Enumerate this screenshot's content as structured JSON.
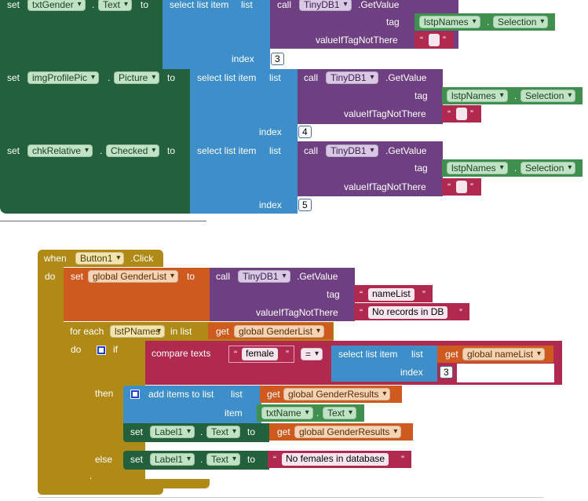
{
  "colors": {
    "setter_green": "#22613b",
    "list_blue": "#3d8ec9",
    "procedure_purple": "#6f4081",
    "text_red": "#b0294f",
    "component_green": "#3f8f4f",
    "variable_orange": "#cf5a20",
    "control_olive": "#b08a17"
  },
  "top_block": {
    "rows": [
      {
        "set_label": "set",
        "component": "txtGender",
        "property": "Text",
        "to_label": "to",
        "select_label": "select list item",
        "list_label": "list",
        "index_label": "index",
        "index_value": "3",
        "call_label": "call",
        "db": "TinyDB1",
        "method": ".GetValue",
        "tag_label": "tag",
        "tag_component": "lstpNames",
        "tag_property": "Selection",
        "notfound_label": "valueIfTagNotThere"
      },
      {
        "set_label": "set",
        "component": "imgProfilePic",
        "property": "Picture",
        "to_label": "to",
        "select_label": "select list item",
        "list_label": "list",
        "index_label": "index",
        "index_value": "4",
        "call_label": "call",
        "db": "TinyDB1",
        "method": ".GetValue",
        "tag_label": "tag",
        "tag_component": "lstpNames",
        "tag_property": "Selection",
        "notfound_label": "valueIfTagNotThere"
      },
      {
        "set_label": "set",
        "component": "chkRelative",
        "property": "Checked",
        "to_label": "to",
        "select_label": "select list item",
        "list_label": "list",
        "index_label": "index",
        "index_value": "5",
        "call_label": "call",
        "db": "TinyDB1",
        "method": ".GetValue",
        "tag_label": "tag",
        "tag_component": "lstpNames",
        "tag_property": "Selection",
        "notfound_label": "valueIfTagNotThere"
      }
    ]
  },
  "event_block": {
    "when_label": "when",
    "component": "Button1",
    "event": ".Click",
    "do_label": "do",
    "set_global": {
      "set_label": "set",
      "variable": "global GenderList",
      "to_label": "to",
      "call_label": "call",
      "db": "TinyDB1",
      "method": ".GetValue",
      "tag_label": "tag",
      "tag_value": "nameList",
      "notfound_label": "valueIfTagNotThere",
      "notfound_value": "No records in DB"
    },
    "for_each": {
      "for_label": "for each",
      "item_var": "lstPNames",
      "in_list_label": "in list",
      "get_label": "get",
      "list_var": "global GenderList",
      "do_label": "do"
    },
    "if_block": {
      "if_label": "if",
      "compare_label": "compare texts",
      "compare_value": "female",
      "operator": "=",
      "select_label": "select list item",
      "list_label": "list",
      "get_label": "get",
      "list_var": "global nameList",
      "index_label": "index",
      "index_value": "3"
    },
    "then_block": {
      "then_label": "then",
      "add_label": "add items to list",
      "list_label": "list",
      "get_label": "get",
      "list_var": "global GenderResults",
      "item_label": "item",
      "item_component": "txtName",
      "item_property": "Text",
      "set_label": "set",
      "set_component": "Label1",
      "set_property": "Text",
      "to_label": "to",
      "set_get_label": "get",
      "set_var": "global GenderResults"
    },
    "else_block": {
      "else_label": "else",
      "set_label": "set",
      "set_component": "Label1",
      "set_property": "Text",
      "to_label": "to",
      "text_value": "No females in database"
    }
  }
}
